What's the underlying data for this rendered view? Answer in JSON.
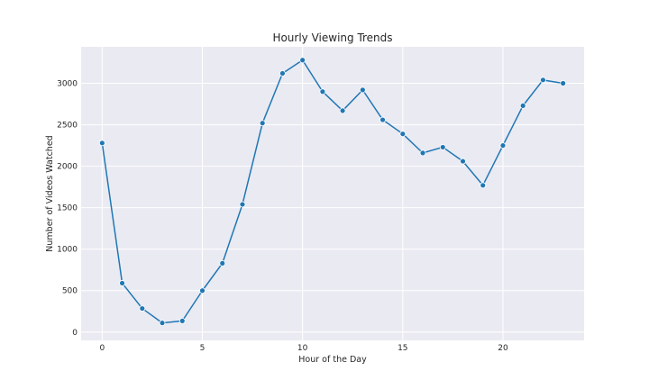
{
  "chart_data": {
    "type": "line",
    "title": "Hourly Viewing Trends",
    "xlabel": "Hour of the Day",
    "ylabel": "Number of Videos Watched",
    "xlim": [
      -1.05,
      24.05
    ],
    "ylim": [
      -100,
      3440
    ],
    "xticks": [
      0,
      5,
      10,
      15,
      20
    ],
    "yticks": [
      0,
      500,
      1000,
      1500,
      2000,
      2500,
      3000
    ],
    "grid": true,
    "series": [
      {
        "x": [
          0,
          1,
          2,
          3,
          4,
          5,
          6,
          7,
          8,
          9,
          10,
          11,
          12,
          13,
          14,
          15,
          16,
          17,
          18,
          19,
          20,
          21,
          22,
          23
        ],
        "y": [
          2280,
          590,
          285,
          110,
          135,
          500,
          830,
          1540,
          2520,
          3120,
          3280,
          2900,
          2670,
          2920,
          2560,
          2390,
          2160,
          2230,
          2060,
          1770,
          2250,
          2730,
          3040,
          3000
        ],
        "color": "#1f77b4",
        "marker": "circle"
      }
    ],
    "background": "#eaeaf2"
  }
}
